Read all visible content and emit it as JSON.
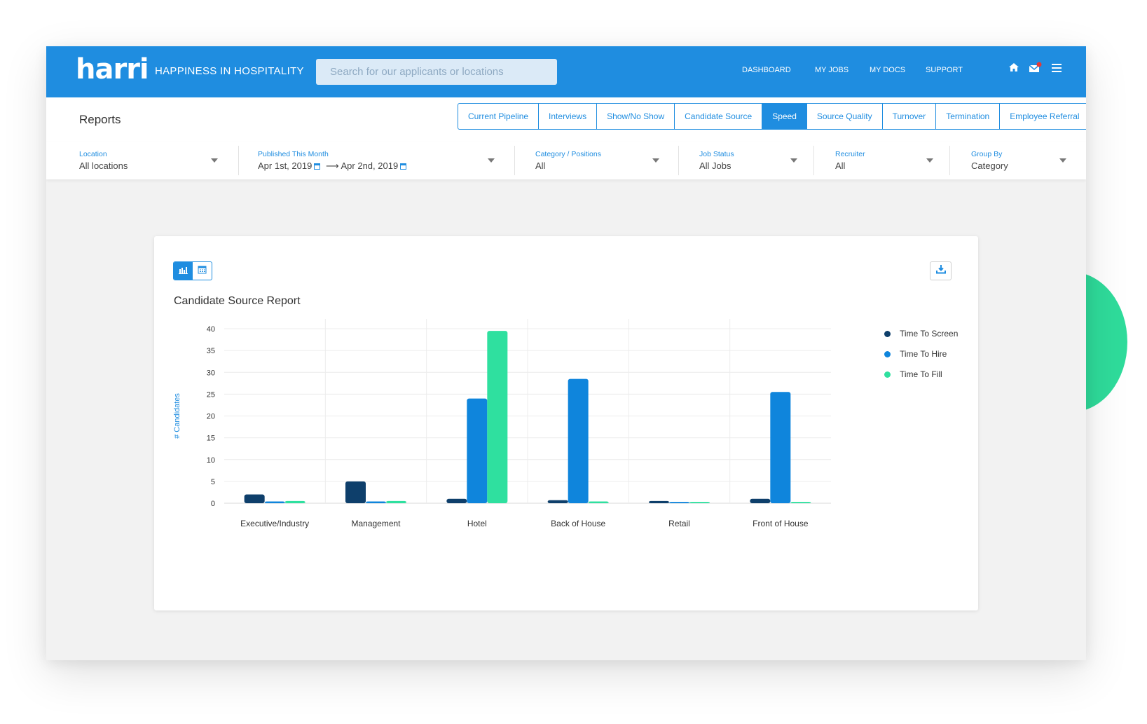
{
  "header": {
    "logo": "harri",
    "tagline": "HAPPINESS IN HOSPITALITY",
    "search_placeholder": "Search for our applicants or locations",
    "nav": [
      "DASHBOARD",
      "MY JOBS",
      "MY DOCS",
      "SUPPORT"
    ],
    "icons": [
      "home-icon",
      "mail-icon",
      "menu-icon"
    ]
  },
  "reports": {
    "title": "Reports",
    "tabs": [
      {
        "label": "Current Pipeline",
        "active": false
      },
      {
        "label": "Interviews",
        "active": false
      },
      {
        "label": "Show/No Show",
        "active": false
      },
      {
        "label": "Candidate Source",
        "active": false
      },
      {
        "label": "Speed",
        "active": true
      },
      {
        "label": "Source Quality",
        "active": false
      },
      {
        "label": "Turnover",
        "active": false
      },
      {
        "label": "Termination",
        "active": false
      },
      {
        "label": "Employee Referral",
        "active": false
      }
    ]
  },
  "filters": {
    "location": {
      "label": "Location",
      "value": "All locations"
    },
    "published": {
      "label": "Published This Month",
      "from": "Apr 1st, 2019",
      "arrow": "⟶",
      "to": "Apr 2nd, 2019"
    },
    "category": {
      "label": "Category / Positions",
      "value": "All"
    },
    "job_status": {
      "label": "Job Status",
      "value": "All Jobs"
    },
    "recruiter": {
      "label": "Recruiter",
      "value": "All"
    },
    "group_by": {
      "label": "Group By",
      "value": "Category"
    }
  },
  "card": {
    "title": "Candidate Source Report"
  },
  "colors": {
    "brand": "#1f8de0",
    "time_to_screen": "#0e3f6b",
    "time_to_hire": "#0f85dc",
    "time_to_fill": "#2fe09f",
    "accent_green": "#2fdc9b"
  },
  "chart_data": {
    "type": "bar",
    "title": "Candidate Source Report",
    "xlabel": "",
    "ylabel": "# Candidates",
    "ylim": [
      0,
      40
    ],
    "yticks": [
      0,
      5,
      10,
      15,
      20,
      25,
      30,
      35,
      40
    ],
    "categories": [
      "Executive/Industry",
      "Management",
      "Hotel",
      "Back of House",
      "Retail",
      "Front of House"
    ],
    "series": [
      {
        "name": "Time To Screen",
        "values": [
          2,
          5,
          1,
          0.7,
          0.5,
          1
        ]
      },
      {
        "name": "Time To Hire",
        "values": [
          0.4,
          0.4,
          24,
          28.5,
          0.3,
          25.5
        ]
      },
      {
        "name": "Time To Fill",
        "values": [
          0.5,
          0.5,
          39.5,
          0.4,
          0.3,
          0.3
        ]
      }
    ],
    "grid": true,
    "legend": "right"
  }
}
